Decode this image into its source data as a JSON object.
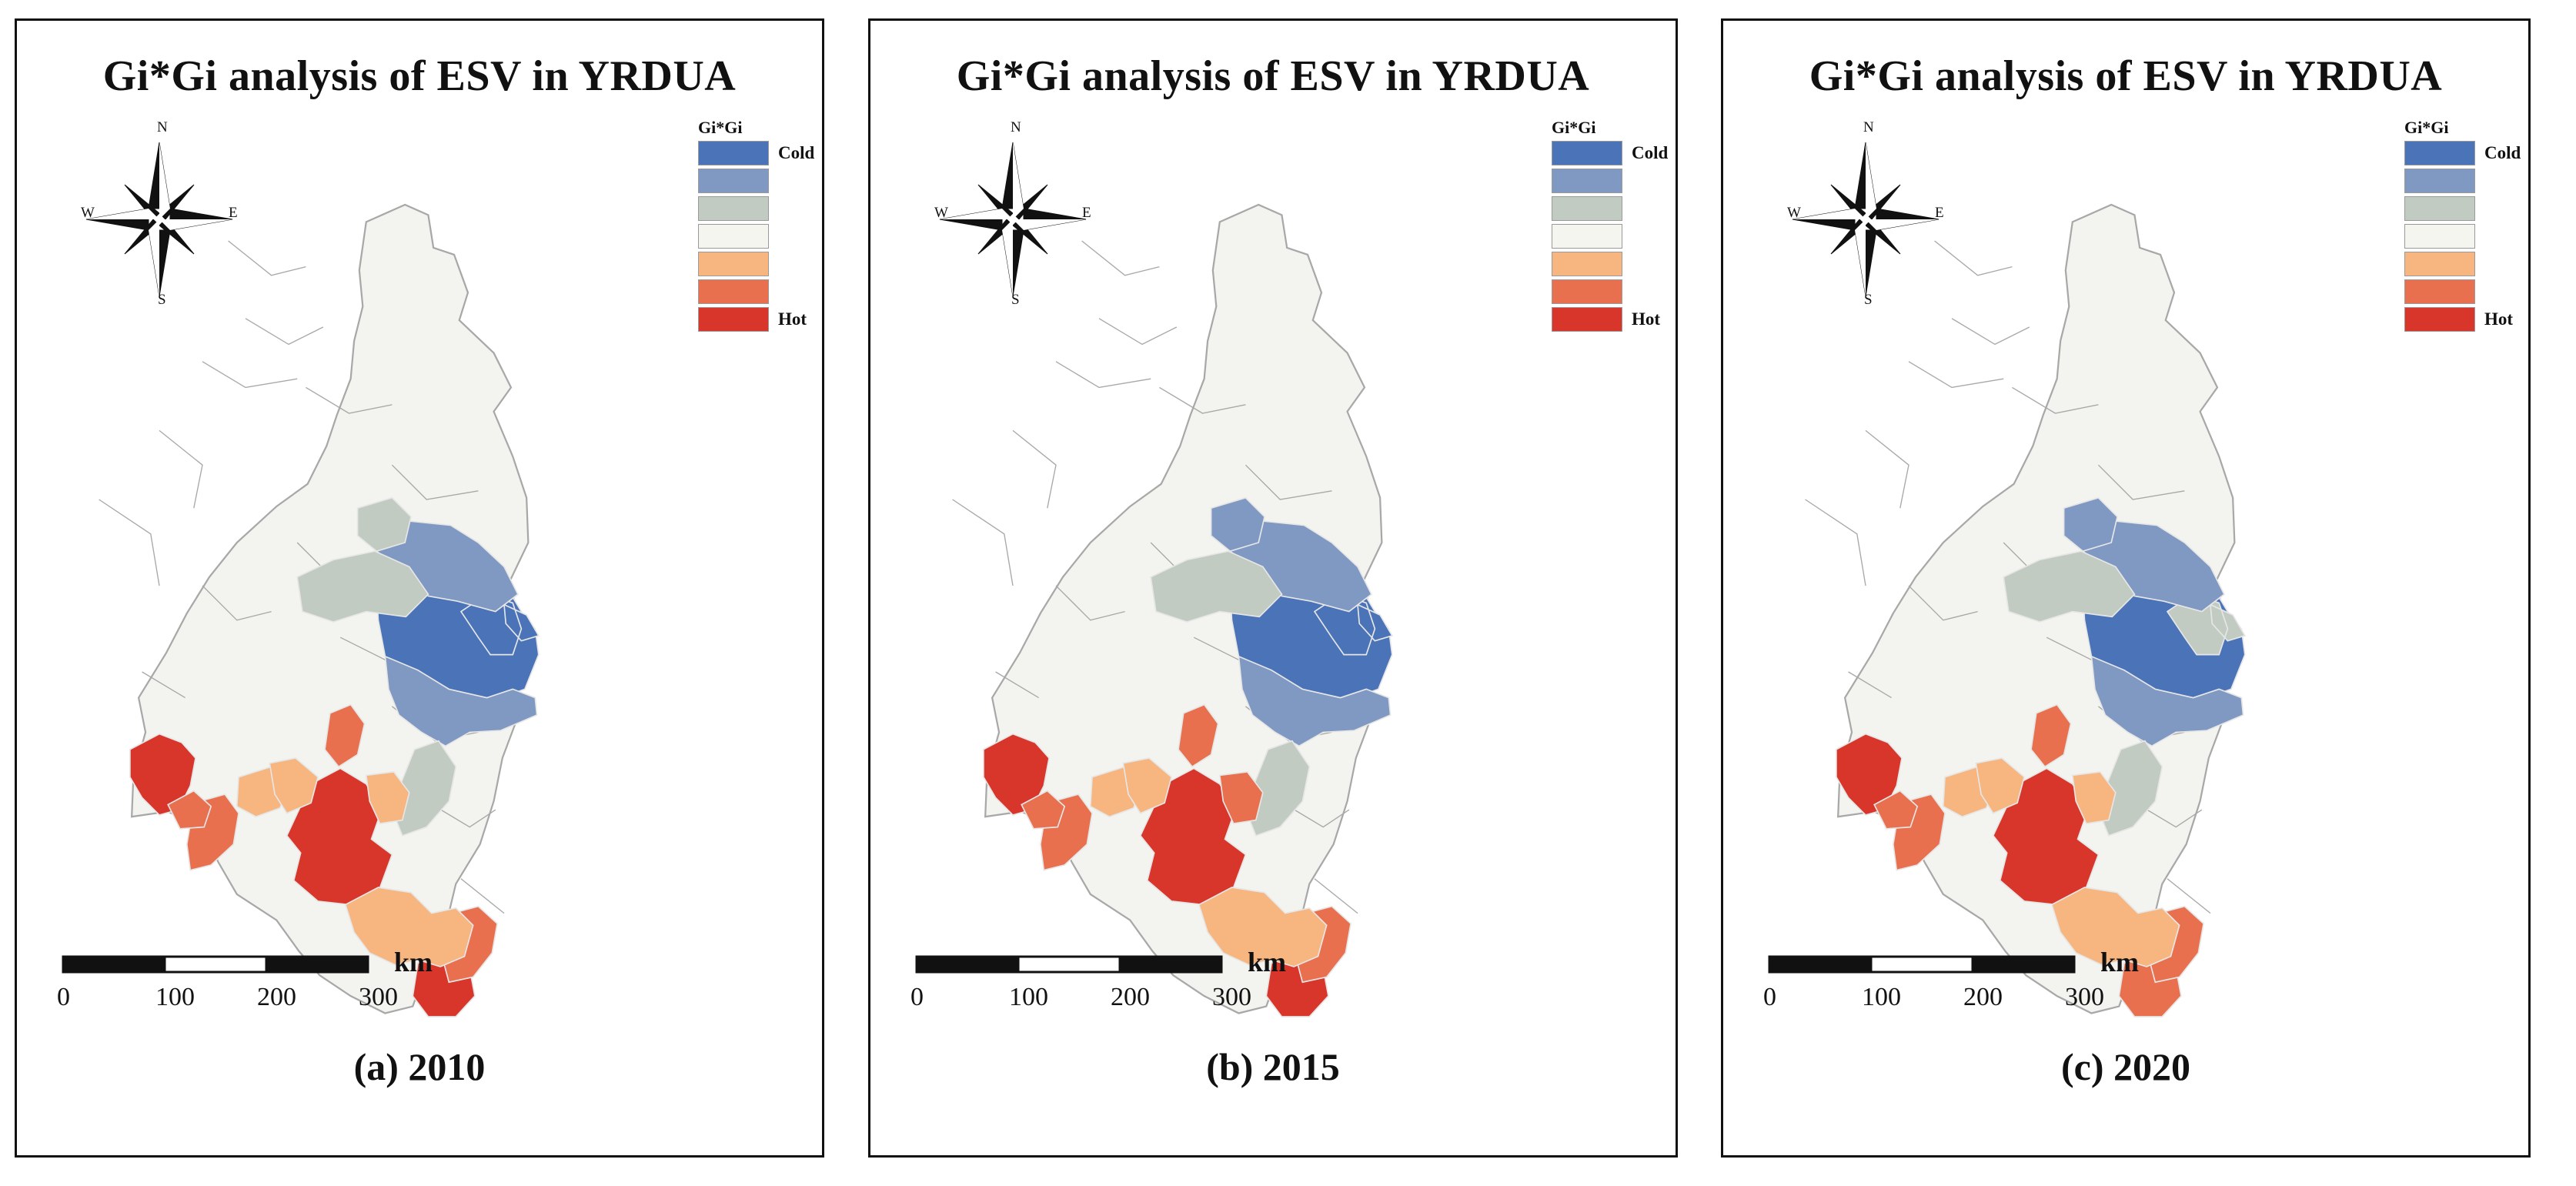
{
  "panels": [
    {
      "title": "Gi*Gi analysis of ESV  in YRDUA",
      "caption": "(a) 2010",
      "compass": {
        "n": "N",
        "s": "S",
        "e": "E",
        "w": "W"
      },
      "legend": {
        "title": "Gi*Gi",
        "labels": [
          "Cold",
          "",
          "",
          "",
          "",
          "",
          "Hot"
        ]
      },
      "scale": {
        "unit": "km",
        "ticks": [
          "0",
          "100",
          "200",
          "300"
        ]
      },
      "regions": [
        {
          "shape": "central",
          "cls": 0
        },
        {
          "shape": "east-lobe",
          "cls": 0
        },
        {
          "shape": "north-ring",
          "cls": 1
        },
        {
          "shape": "south-ring",
          "cls": 1
        },
        {
          "shape": "north-tip",
          "cls": 2
        },
        {
          "shape": "west-band",
          "cls": 2
        },
        {
          "shape": "south-corridor",
          "cls": 2
        },
        {
          "shape": "far-west",
          "cls": 6
        },
        {
          "shape": "middle-block",
          "cls": 6
        },
        {
          "shape": "south-east-block",
          "cls": 6
        },
        {
          "shape": "west-mid",
          "cls": 5
        },
        {
          "shape": "west-small",
          "cls": 5
        },
        {
          "shape": "middle-north",
          "cls": 5
        },
        {
          "shape": "south-east-ring",
          "cls": 5
        },
        {
          "shape": "west-low",
          "cls": 4
        },
        {
          "shape": "middle-west",
          "cls": 4
        },
        {
          "shape": "middle-east",
          "cls": 4
        },
        {
          "shape": "south-band",
          "cls": 4
        }
      ]
    },
    {
      "title": "Gi*Gi analysis of ESV  in YRDUA",
      "caption": "(b) 2015",
      "compass": {
        "n": "N",
        "s": "S",
        "e": "E",
        "w": "W"
      },
      "legend": {
        "title": "Gi*Gi",
        "labels": [
          "Cold",
          "",
          "",
          "",
          "",
          "",
          "Hot"
        ]
      },
      "scale": {
        "unit": "km",
        "ticks": [
          "0",
          "100",
          "200",
          "300"
        ]
      },
      "regions": [
        {
          "shape": "central",
          "cls": 0
        },
        {
          "shape": "east-lobe",
          "cls": 0
        },
        {
          "shape": "north-ring",
          "cls": 1
        },
        {
          "shape": "south-ring",
          "cls": 1
        },
        {
          "shape": "north-tip",
          "cls": 1
        },
        {
          "shape": "west-band",
          "cls": 2
        },
        {
          "shape": "south-corridor",
          "cls": 2
        },
        {
          "shape": "far-west",
          "cls": 6
        },
        {
          "shape": "middle-block",
          "cls": 6
        },
        {
          "shape": "south-east-block",
          "cls": 6
        },
        {
          "shape": "west-mid",
          "cls": 5
        },
        {
          "shape": "west-small",
          "cls": 5
        },
        {
          "shape": "middle-north",
          "cls": 5
        },
        {
          "shape": "south-east-ring",
          "cls": 5
        },
        {
          "shape": "west-low",
          "cls": 4
        },
        {
          "shape": "middle-west",
          "cls": 4
        },
        {
          "shape": "middle-east",
          "cls": 5
        },
        {
          "shape": "south-band",
          "cls": 4
        }
      ]
    },
    {
      "title": "Gi*Gi analysis of ESV  in YRDUA",
      "caption": "(c) 2020",
      "compass": {
        "n": "N",
        "s": "S",
        "e": "E",
        "w": "W"
      },
      "legend": {
        "title": "Gi*Gi",
        "labels": [
          "Cold",
          "",
          "",
          "",
          "",
          "",
          "Hot"
        ]
      },
      "scale": {
        "unit": "km",
        "ticks": [
          "0",
          "100",
          "200",
          "300"
        ]
      },
      "regions": [
        {
          "shape": "central",
          "cls": 0
        },
        {
          "shape": "east-lobe",
          "cls": 2
        },
        {
          "shape": "north-ring",
          "cls": 1
        },
        {
          "shape": "south-ring",
          "cls": 1
        },
        {
          "shape": "north-tip",
          "cls": 1
        },
        {
          "shape": "west-band",
          "cls": 2
        },
        {
          "shape": "south-corridor",
          "cls": 2
        },
        {
          "shape": "far-west",
          "cls": 6
        },
        {
          "shape": "middle-block",
          "cls": 6
        },
        {
          "shape": "south-east-block",
          "cls": 5
        },
        {
          "shape": "west-mid",
          "cls": 5
        },
        {
          "shape": "west-small",
          "cls": 5
        },
        {
          "shape": "middle-north",
          "cls": 5
        },
        {
          "shape": "south-east-ring",
          "cls": 5
        },
        {
          "shape": "west-low",
          "cls": 4
        },
        {
          "shape": "middle-west",
          "cls": 4
        },
        {
          "shape": "middle-east",
          "cls": 4
        },
        {
          "shape": "south-band",
          "cls": 4
        }
      ]
    }
  ],
  "colors": {
    "classes": [
      "#4a73b8",
      "#8099c2",
      "#c1cbc2",
      "#f5f5f0",
      "#f7b580",
      "#e8704e",
      "#d8362b"
    ],
    "base_fill": "#f3f3ef",
    "boundary": "#a8a8a8"
  }
}
